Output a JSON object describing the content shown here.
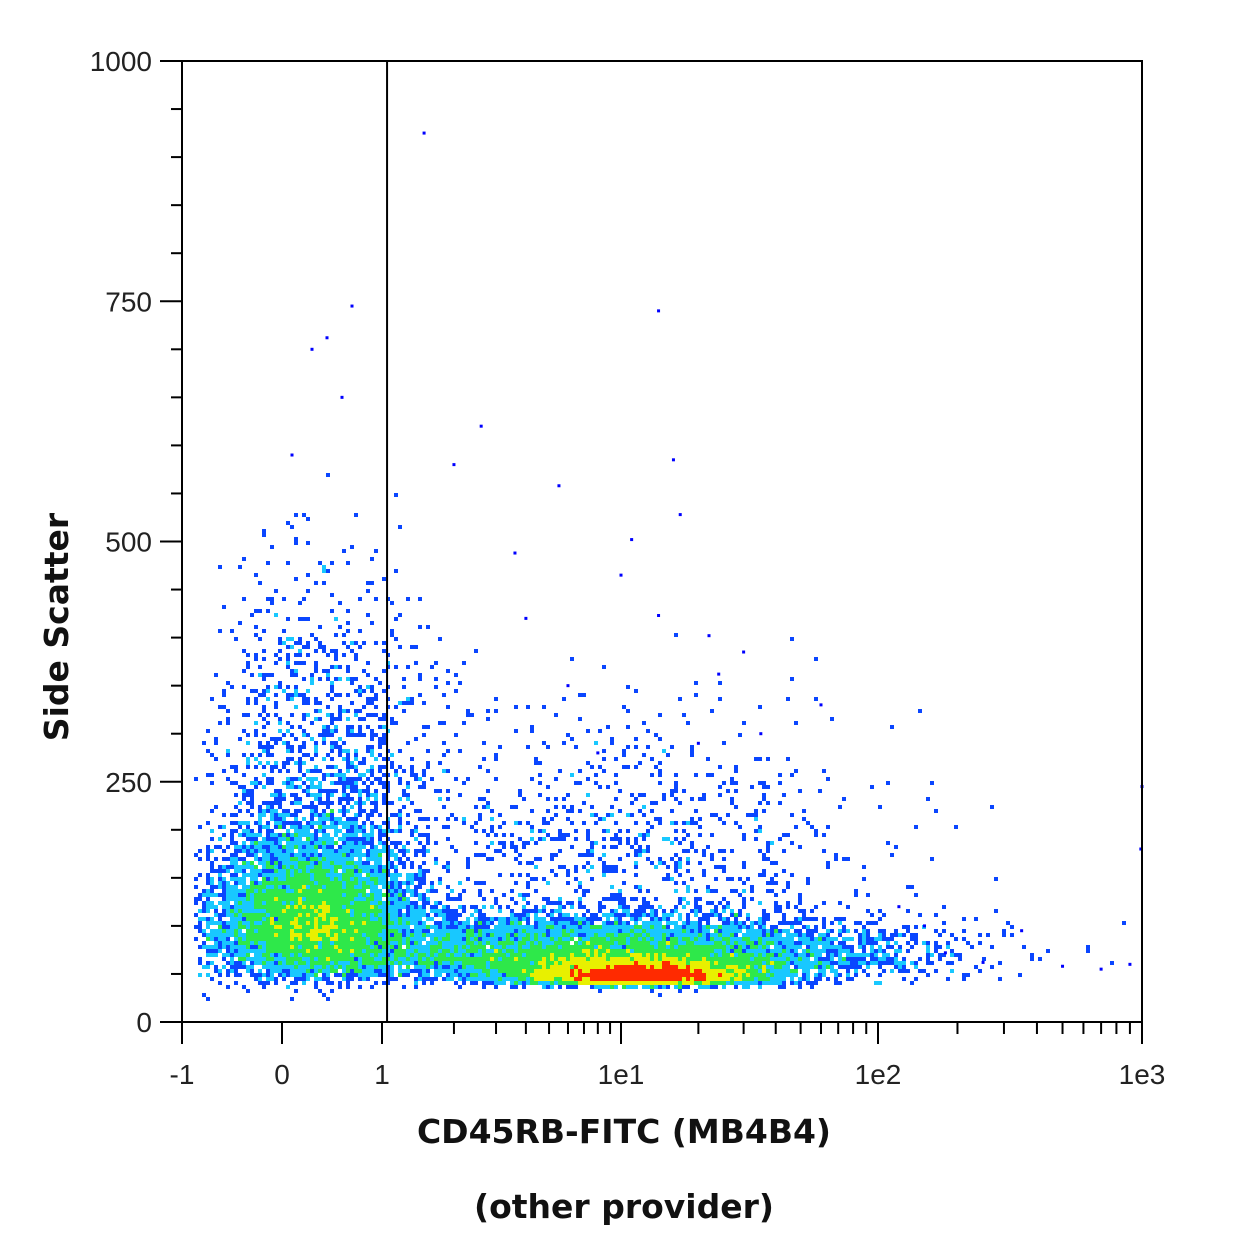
{
  "chart_data": {
    "type": "scatter",
    "subtype": "flow-cytometry-density-plot",
    "xlabel": "CD45RB-FITC (MB4B4)",
    "xlabel_line2": "(other provider)",
    "ylabel": "Side Scatter",
    "x_scale": "biexponential (linear near zero, log above)",
    "x_ticks": [
      "-1",
      "0",
      "1",
      "1e1",
      "1e2",
      "1e3"
    ],
    "x_tick_values": [
      -1,
      0,
      1,
      10,
      100,
      1000
    ],
    "xlim": [
      -1,
      1000
    ],
    "y_ticks": [
      "0",
      "250",
      "500",
      "750",
      "1000"
    ],
    "y_tick_values": [
      0,
      250,
      500,
      750,
      1000
    ],
    "ylim": [
      0,
      1000
    ],
    "grid": false,
    "legend": "none",
    "gate": {
      "type": "vertical-line",
      "x": 1.05
    },
    "density_colors": [
      "#0000ff",
      "#0a46ff",
      "#18c8ff",
      "#2ee84a",
      "#e8f000",
      "#ff2a00"
    ],
    "populations": [
      {
        "name": "",
        "x_center": 0.3,
        "y_center": 85,
        "x_spread_decades": 0.35,
        "y_spread": 55,
        "weight": 0.3
      },
      {
        "name": "",
        "x_center": 0.4,
        "y_center": 230,
        "x_spread_decades": 0.4,
        "y_spread": 110,
        "weight": 0.04
      },
      {
        "name": "",
        "x_center": 12,
        "y_center": 45,
        "x_spread_decades": 0.22,
        "y_spread": 10,
        "weight": 0.28
      },
      {
        "name": "",
        "x_center": 8,
        "y_center": 60,
        "x_spread_decades": 0.55,
        "y_spread": 25,
        "weight": 0.3
      },
      {
        "name": "",
        "x_center": 10,
        "y_center": 160,
        "x_spread_decades": 0.5,
        "y_spread": 80,
        "weight": 0.03
      }
    ]
  }
}
